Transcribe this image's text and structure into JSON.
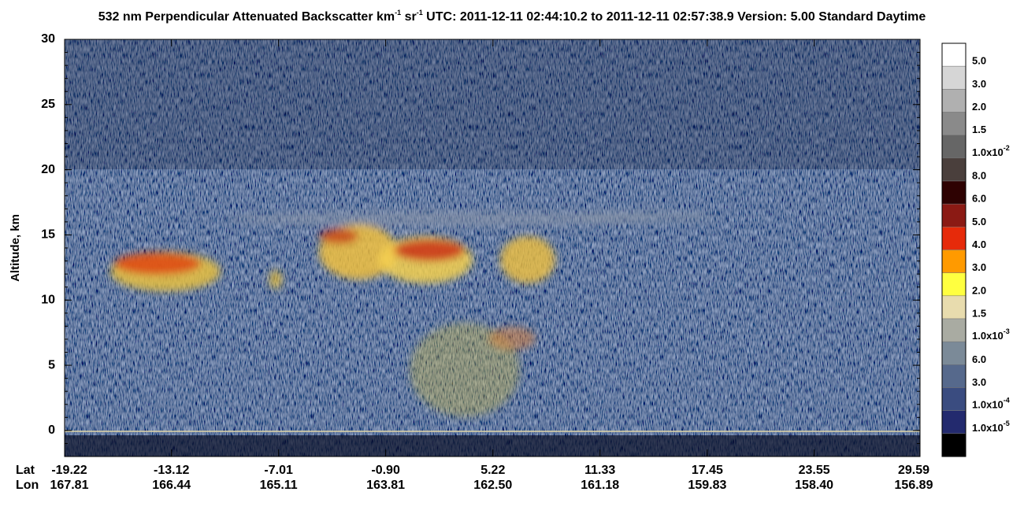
{
  "chart_data": {
    "type": "curtain",
    "title": [
      "532 nm Perpendicular Attenuated Backscatter km",
      "-1",
      " sr",
      "-1",
      "  UTC: 2011-12-11 02:44:10.2 to 2011-12-11 02:57:38.9  Version: 5.00 Standard Daytime"
    ],
    "ylabel": "Altitude, km",
    "ylim": [
      -2,
      30
    ],
    "yticks": [
      0,
      5,
      10,
      15,
      20,
      25,
      30
    ],
    "x_row_labels": [
      "Lat",
      "Lon"
    ],
    "xlim": [
      -19.22,
      29.59
    ],
    "xticks": [
      -19.22,
      -13.12,
      -7.01,
      {
        "value": -0.9,
        "label": "-0.90"
      },
      5.22,
      11.33,
      17.45,
      23.55,
      29.59
    ],
    "lon_labels": [
      "167.81",
      "166.44",
      "165.11",
      "163.81",
      "162.50",
      "161.18",
      "159.83",
      "158.40",
      "156.89"
    ],
    "colorbar_colors": [
      "#ffffff",
      "#d6d6d6",
      "#b0b0b0",
      "#8a8a8a",
      "#666666",
      "#4a3f3c",
      "#2e0202",
      "#8b1a14",
      "#e62a0a",
      "#ff9a00",
      "#ffff40",
      "#e8dcae",
      "#a9aba2",
      "#7b8a98",
      "#56698c",
      "#3a4c80",
      "#232a6e",
      "#000000"
    ],
    "colorbar_labels": [
      "5.0",
      "3.0",
      "2.0",
      "1.5",
      {
        "text": "1.0x10",
        "sup": "-2"
      },
      "8.0",
      "6.0",
      "5.0",
      "4.0",
      "3.0",
      "2.0",
      "1.5",
      {
        "text": "1.0x10",
        "sup": "-3"
      },
      "6.0",
      "3.0",
      {
        "text": "1.0x10",
        "sup": "-4"
      },
      {
        "text": "1.0x10",
        "sup": "-5"
      }
    ]
  }
}
